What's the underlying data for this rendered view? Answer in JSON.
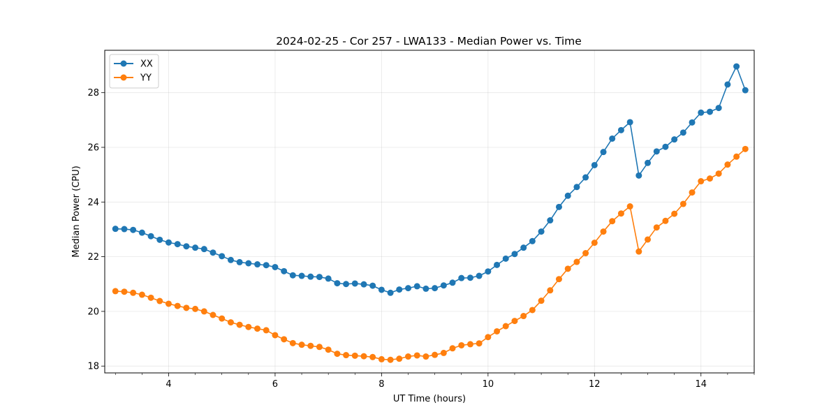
{
  "chart_data": {
    "type": "line",
    "title": "2024-02-25 - Cor 257 - LWA133 - Median Power vs. Time",
    "xlabel": "UT Time (hours)",
    "ylabel": "Median Power (CPU)",
    "xlim": [
      2.8,
      15.0
    ],
    "ylim": [
      17.75,
      29.55
    ],
    "xticks": [
      4,
      6,
      8,
      10,
      12,
      14
    ],
    "yticks": [
      18,
      20,
      22,
      24,
      26,
      28
    ],
    "grid": true,
    "legend_position": "top-left",
    "x": [
      3.0,
      3.167,
      3.333,
      3.5,
      3.667,
      3.833,
      4.0,
      4.167,
      4.333,
      4.5,
      4.667,
      4.833,
      5.0,
      5.167,
      5.333,
      5.5,
      5.667,
      5.833,
      6.0,
      6.167,
      6.333,
      6.5,
      6.667,
      6.833,
      7.0,
      7.167,
      7.333,
      7.5,
      7.667,
      7.833,
      8.0,
      8.167,
      8.333,
      8.5,
      8.667,
      8.833,
      9.0,
      9.167,
      9.333,
      9.5,
      9.667,
      9.833,
      10.0,
      10.167,
      10.333,
      10.5,
      10.667,
      10.833,
      11.0,
      11.167,
      11.333,
      11.5,
      11.667,
      11.833,
      12.0,
      12.167,
      12.333,
      12.5,
      12.667,
      12.833,
      13.0,
      13.167,
      13.333,
      13.5,
      13.667,
      13.833,
      14.0,
      14.167,
      14.333,
      14.5,
      14.667,
      14.833
    ],
    "series": [
      {
        "name": "XX",
        "color": "#1f77b4",
        "values": [
          23.02,
          23.01,
          22.98,
          22.88,
          22.75,
          22.62,
          22.52,
          22.46,
          22.38,
          22.33,
          22.28,
          22.15,
          22.02,
          21.88,
          21.8,
          21.76,
          21.72,
          21.69,
          21.62,
          21.47,
          21.32,
          21.3,
          21.27,
          21.26,
          21.2,
          21.03,
          21.0,
          21.02,
          20.99,
          20.94,
          20.79,
          20.68,
          20.8,
          20.85,
          20.92,
          20.83,
          20.85,
          20.95,
          21.05,
          21.22,
          21.23,
          21.3,
          21.46,
          21.7,
          21.93,
          22.1,
          22.33,
          22.57,
          22.92,
          23.33,
          23.82,
          24.23,
          24.55,
          24.9,
          25.35,
          25.83,
          26.32,
          26.63,
          26.92,
          24.97,
          25.43,
          25.85,
          26.02,
          26.29,
          26.54,
          26.91,
          27.27,
          27.3,
          27.44,
          28.3,
          28.96,
          28.09
        ]
      },
      {
        "name": "YY",
        "color": "#ff7f0e",
        "values": [
          20.74,
          20.72,
          20.68,
          20.61,
          20.5,
          20.38,
          20.28,
          20.2,
          20.13,
          20.09,
          20.0,
          19.87,
          19.74,
          19.6,
          19.51,
          19.43,
          19.37,
          19.31,
          19.13,
          18.98,
          18.84,
          18.78,
          18.74,
          18.7,
          18.6,
          18.45,
          18.4,
          18.38,
          18.36,
          18.33,
          18.25,
          18.23,
          18.27,
          18.35,
          18.39,
          18.35,
          18.41,
          18.48,
          18.65,
          18.76,
          18.8,
          18.83,
          19.06,
          19.27,
          19.46,
          19.65,
          19.83,
          20.05,
          20.39,
          20.77,
          21.18,
          21.56,
          21.81,
          22.13,
          22.51,
          22.92,
          23.3,
          23.58,
          23.84,
          22.19,
          22.63,
          23.07,
          23.31,
          23.57,
          23.93,
          24.35,
          24.76,
          24.86,
          25.04,
          25.37,
          25.66,
          25.94
        ]
      }
    ]
  }
}
